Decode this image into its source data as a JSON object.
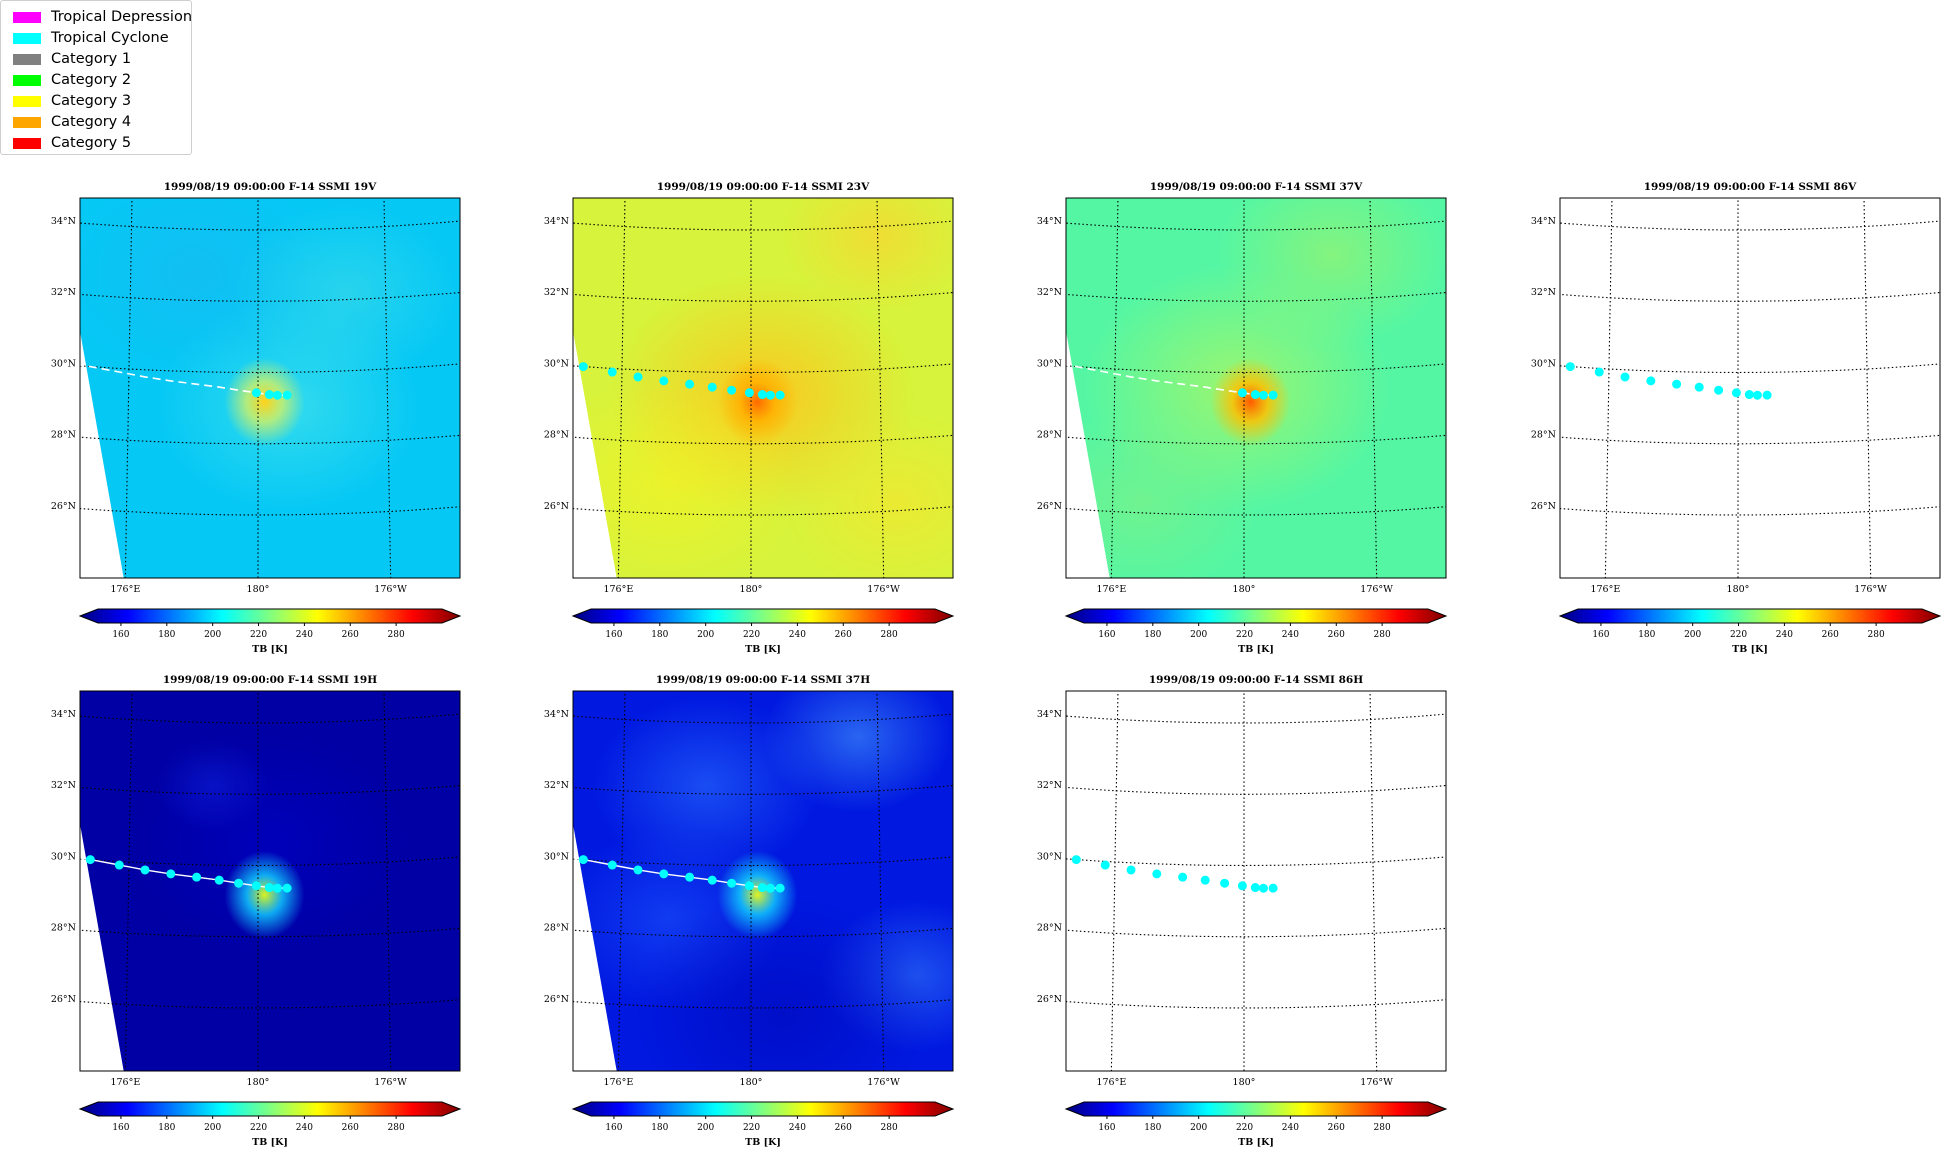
{
  "legend": {
    "items": [
      {
        "label": "Tropical Depression",
        "color": "#ff00ff"
      },
      {
        "label": "Tropical Cyclone",
        "color": "#00ffff"
      },
      {
        "label": "Category 1",
        "color": "#808080"
      },
      {
        "label": "Category 2",
        "color": "#00ff00"
      },
      {
        "label": "Category 3",
        "color": "#ffff00"
      },
      {
        "label": "Category 4",
        "color": "#ffa500"
      },
      {
        "label": "Category 5",
        "color": "#ff0000"
      }
    ]
  },
  "chart_data": [
    {
      "type": "heatmap",
      "title": "1999/08/19 09:00:00  F-14 SSMI 19V",
      "channel": "19V",
      "background": "cyan-blue",
      "colorbar": {
        "label": "TB [K]",
        "ticks": [
          160,
          180,
          200,
          220,
          240,
          260,
          280
        ],
        "range": [
          150,
          300
        ],
        "colormap": "jet"
      },
      "xticks": [
        "176°E",
        "180°",
        "176°W"
      ],
      "yticks": [
        "34°N",
        "32°N",
        "30°N",
        "28°N",
        "26°N"
      ],
      "track_color": "#00ffff",
      "track_style": "dashed-white"
    },
    {
      "type": "heatmap",
      "title": "1999/08/19 09:00:00  F-14 SSMI 23V",
      "channel": "23V",
      "background": "yellow-orange",
      "colorbar": {
        "label": "TB [K]",
        "ticks": [
          160,
          180,
          200,
          220,
          240,
          260,
          280
        ],
        "range": [
          150,
          300
        ],
        "colormap": "jet"
      },
      "xticks": [
        "176°E",
        "180°",
        "176°W"
      ],
      "yticks": [
        "34°N",
        "32°N",
        "30°N",
        "28°N",
        "26°N"
      ],
      "track_color": "#00ffff",
      "track_style": "dots"
    },
    {
      "type": "heatmap",
      "title": "1999/08/19 09:00:00  F-14 SSMI 37V",
      "channel": "37V",
      "background": "green-yellow",
      "colorbar": {
        "label": "TB [K]",
        "ticks": [
          160,
          180,
          200,
          220,
          240,
          260,
          280
        ],
        "range": [
          150,
          300
        ],
        "colormap": "jet"
      },
      "xticks": [
        "176°E",
        "180°",
        "176°W"
      ],
      "yticks": [
        "34°N",
        "32°N",
        "30°N",
        "28°N",
        "26°N"
      ],
      "track_color": "#00ffff",
      "track_style": "dashed-white"
    },
    {
      "type": "heatmap",
      "title": "1999/08/19 09:00:00  F-14 SSMI 86V",
      "channel": "86V",
      "background": "none",
      "colorbar": {
        "label": "TB [K]",
        "ticks": [
          160,
          180,
          200,
          220,
          240,
          260,
          280
        ],
        "range": [
          150,
          300
        ],
        "colormap": "jet"
      },
      "xticks": [
        "176°E",
        "180°",
        "176°W"
      ],
      "yticks": [
        "34°N",
        "32°N",
        "30°N",
        "28°N",
        "26°N"
      ],
      "track_color": "#00ffff",
      "track_style": "dots"
    },
    {
      "type": "heatmap",
      "title": "1999/08/19 09:00:00  F-14 SSMI 19H",
      "channel": "19H",
      "background": "dark-blue",
      "colorbar": {
        "label": "TB [K]",
        "ticks": [
          160,
          180,
          200,
          220,
          240,
          260,
          280
        ],
        "range": [
          150,
          300
        ],
        "colormap": "jet"
      },
      "xticks": [
        "176°E",
        "180°",
        "176°W"
      ],
      "yticks": [
        "34°N",
        "32°N",
        "30°N",
        "28°N",
        "26°N"
      ],
      "track_color": "#00ffff",
      "track_style": "dots-white-line"
    },
    {
      "type": "heatmap",
      "title": "1999/08/19 09:00:00  F-14 SSMI 37H",
      "channel": "37H",
      "background": "blue-mottled",
      "colorbar": {
        "label": "TB [K]",
        "ticks": [
          160,
          180,
          200,
          220,
          240,
          260,
          280
        ],
        "range": [
          150,
          300
        ],
        "colormap": "jet"
      },
      "xticks": [
        "176°E",
        "180°",
        "176°W"
      ],
      "yticks": [
        "34°N",
        "32°N",
        "30°N",
        "28°N",
        "26°N"
      ],
      "track_color": "#00ffff",
      "track_style": "dots-white-line"
    },
    {
      "type": "heatmap",
      "title": "1999/08/19 09:00:00  F-14 SSMI 86H",
      "channel": "86H",
      "background": "none",
      "colorbar": {
        "label": "TB [K]",
        "ticks": [
          160,
          180,
          200,
          220,
          240,
          260,
          280
        ],
        "range": [
          150,
          300
        ],
        "colormap": "jet"
      },
      "xticks": [
        "176°E",
        "180°",
        "176°W"
      ],
      "yticks": [
        "34°N",
        "32°N",
        "30°N",
        "28°N",
        "26°N"
      ],
      "track_color": "#00ffff",
      "track_style": "dots"
    }
  ]
}
